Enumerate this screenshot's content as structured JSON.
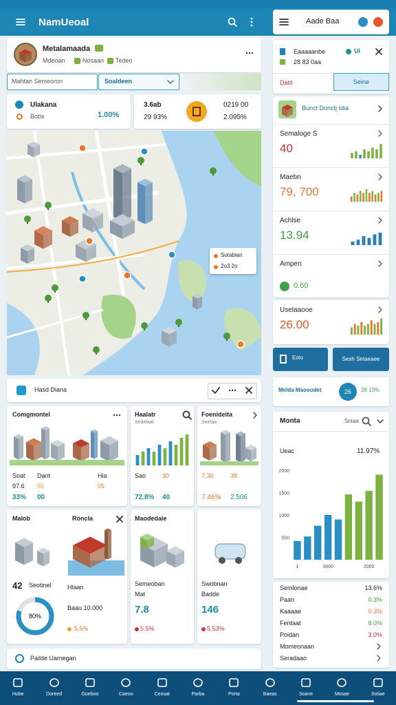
{
  "header": {
    "title": "NamUeoal"
  },
  "profile": {
    "name": "Metalamaada",
    "subtitle": "Mdeoan",
    "tag1": "Nosaan",
    "tag2": "Tedeo"
  },
  "search": {
    "placeholder": "Mahtan Semeoron",
    "button": "Soaldeen"
  },
  "stat_cards": [
    {
      "title": "Ulakana",
      "subtitle": "Bobs",
      "value": "1.00%"
    },
    {
      "title": "3.6ab",
      "subtitle": "29 93%",
      "value": "0219 00",
      "value_sub": "2.095%"
    }
  ],
  "map": {
    "callout_title": "Sotabian",
    "callout_value": "2o3 2o"
  },
  "filter": {
    "label": "Hasd Diana"
  },
  "cards": [
    {
      "title": "Comgmontel",
      "labels": [
        "Soat",
        "Dant",
        "Hia"
      ],
      "values": [
        "97.6",
        "55",
        "05"
      ],
      "values2": [
        "33%",
        "00"
      ]
    },
    {
      "title": "Haalatr",
      "subtitle": "Sedelaat",
      "bars": [
        3,
        4,
        5,
        4,
        6,
        5,
        7,
        6,
        8,
        9
      ],
      "bar_colors": [
        "#2a8fc4",
        "#7cb342",
        "#2a8fc4",
        "#7cb342",
        "#2a8fc4",
        "#7cb342",
        "#2a8fc4",
        "#7cb342",
        "#7cb342",
        "#7cb342"
      ],
      "labels": [
        "Sao",
        "30"
      ],
      "values2": [
        "72.8%",
        "40"
      ]
    },
    {
      "title": "Foenideita",
      "subtitle": "Soetaa",
      "labels": [
        "7.30",
        "38"
      ],
      "values2": [
        "7.46%",
        "2.506"
      ]
    },
    {
      "title": "Malob",
      "title2": "Roncla",
      "big": "42",
      "big_label": "Seotinel",
      "donut": {
        "value": 80,
        "value_label": "80%"
      },
      "side": [
        "Hlaan",
        "Baau 10.000",
        "5.5%"
      ]
    },
    {
      "title": "Maodedaie",
      "lines": [
        "Semeoban",
        "Mat"
      ],
      "value": "7.8",
      "change": "5.5%"
    },
    {
      "lines": [
        "Swobnan",
        "Badde"
      ],
      "value": "146",
      "change": "5.53%"
    }
  ],
  "footer_link": {
    "label": "Pailde Uamegan"
  },
  "nav": [
    "Hobe",
    "Doreed",
    "Goeboo",
    "Caeoo",
    "Ceosat",
    "Parba",
    "Porta",
    "Baeas",
    "Soane",
    "Mosae",
    "Sotiae"
  ],
  "right": {
    "top": {
      "title": "Aade Baa"
    },
    "summary": {
      "title": "Eaaaaanbe",
      "badge": "Ul",
      "subtitle": "28 83 0aa",
      "tabs": [
        "Daid",
        "Seine"
      ]
    },
    "list": [
      {
        "title": "Bunct Donctj Idia"
      },
      {
        "title": "Semaloge S",
        "value": "40",
        "color": "#d32f2f",
        "bars": [
          3,
          4,
          2,
          5,
          4,
          6,
          5,
          8
        ],
        "bar_colors": [
          "#7cb342",
          "#7cb342",
          "#2a8fc4",
          "#7cb342",
          "#7cb342",
          "#7cb342",
          "#7cb342",
          "#7cb342"
        ]
      },
      {
        "title": "Maebn",
        "value": "79, 700",
        "color": "#e8762c",
        "bars": [
          3,
          5,
          4,
          6,
          5,
          7,
          5,
          6,
          4,
          5,
          6
        ],
        "bar_colors": [
          "#e8762c",
          "#7cb342",
          "#e8762c",
          "#7cb342",
          "#e8762c",
          "#7cb342",
          "#e8762c",
          "#7cb342",
          "#e8762c",
          "#7cb342",
          "#e8762c"
        ]
      },
      {
        "title": "Achlse",
        "value": "13.94",
        "color": "#43a047",
        "bars": [
          2,
          3,
          5,
          4,
          6,
          7
        ],
        "bar_colors": [
          "#2a7fb8",
          "#2a7fb8",
          "#2a7fb8",
          "#2a7fb8",
          "#2a7fb8",
          "#2a7fb8"
        ]
      },
      {
        "title": "Ampen",
        "value": "0.60",
        "color": "#43a047"
      }
    ],
    "extra": {
      "title": "Uselaaooe",
      "value": "26.00",
      "color": "#e8552c",
      "bars": [
        4,
        6,
        5,
        7,
        5,
        6,
        8,
        6,
        7,
        9
      ],
      "bar_colors": [
        "#7cb342",
        "#e8762c",
        "#7cb342",
        "#e8762c",
        "#7cb342",
        "#7cb342",
        "#e8762c",
        "#7cb342",
        "#e8762c",
        "#7cb342"
      ]
    },
    "buttons": [
      "Eolo",
      "Sesh Setaeaee"
    ],
    "highlight": {
      "title": "Melda Maooodet",
      "badge": "26",
      "value": "28 13%"
    },
    "chart_panel": {
      "title": "Monta",
      "filter": "Sniaa",
      "label": "Ueac",
      "value": "11.97%"
    },
    "stats": [
      {
        "label": "Semlonae",
        "value": "13.6%",
        "color": "#222222"
      },
      {
        "label": "Paan",
        "value": "0.3%",
        "color": "#43a047"
      },
      {
        "label": "Kaaaae",
        "value": "0.3%",
        "color": "#e8762c"
      },
      {
        "label": "Fentaat",
        "value": "8.0%",
        "color": "#43a047"
      },
      {
        "label": "Poidan",
        "value": "3.0%",
        "color": "#d32f2f"
      },
      {
        "label": "Momeonaan"
      },
      {
        "label": "Seradaao"
      }
    ]
  },
  "chart_data": {
    "type": "bar",
    "categories": [
      "1",
      null,
      null,
      "3000",
      null,
      null,
      null,
      "2000",
      null
    ],
    "values": [
      420,
      520,
      760,
      1000,
      900,
      1460,
      1300,
      1540,
      1900
    ],
    "colors": [
      "#2a8fc4",
      "#2a8fc4",
      "#2a8fc4",
      "#2a8fc4",
      "#2a8fc4",
      "#7cb342",
      "#7cb342",
      "#7cb342",
      "#7cb342"
    ],
    "ylim": [
      0,
      2000
    ],
    "yticks": [
      500,
      1000,
      1500,
      2000
    ],
    "grid": false
  }
}
